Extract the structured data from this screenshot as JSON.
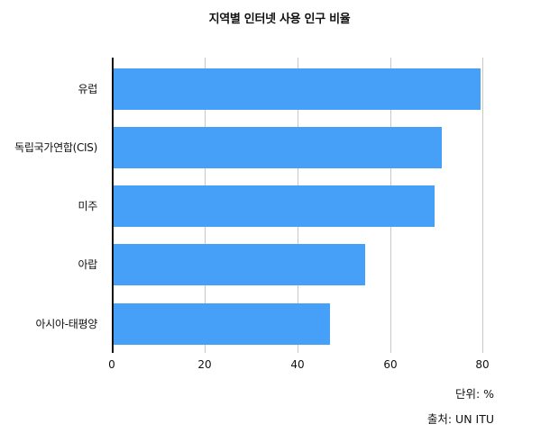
{
  "chart_data": {
    "type": "bar",
    "orientation": "horizontal",
    "title": "지역별 인터넷 사용 인구 비율",
    "categories": [
      "유럽",
      "독립국가연합(CIS)",
      "미주",
      "아랍",
      "아시아-태평양"
    ],
    "values": [
      79.6,
      71.3,
      69.6,
      54.7,
      47.1
    ],
    "xlabel": "",
    "ylabel": "",
    "xlim": [
      0,
      85
    ],
    "xticks": [
      0,
      20,
      40,
      60,
      80
    ],
    "grid": true,
    "legend": null,
    "bar_color": "#47A0F7",
    "unit_note": "단위: %",
    "source_note": "출처: UN ITU"
  },
  "title": "지역별 인터넷 사용 인구 비율",
  "categories": [
    {
      "label": "유럽"
    },
    {
      "label": "독립국가연합(CIS)"
    },
    {
      "label": "미주"
    },
    {
      "label": "아랍"
    },
    {
      "label": "아시아-태평양"
    }
  ],
  "ticks": [
    "0",
    "20",
    "40",
    "60",
    "80"
  ],
  "notes": {
    "unit": "단위: %",
    "source": "출처: UN ITU"
  },
  "colors": {
    "bar": "#47A0F7",
    "grid": "#C8C8C8",
    "axis": "#111111"
  }
}
